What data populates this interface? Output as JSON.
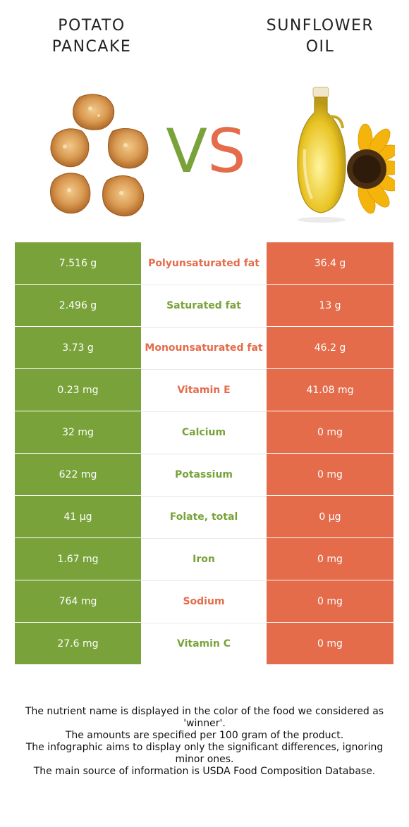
{
  "foods": {
    "left": {
      "name": "POTATO\nPANCAKE",
      "color": "#79a33a"
    },
    "right": {
      "name": "SUNFLOWER\nOIL",
      "color": "#e46c4b"
    }
  },
  "vs": {
    "v": "V",
    "s": "S"
  },
  "rows": [
    {
      "nutrient": "Polyunsaturated fat",
      "left": "7.516 g",
      "right": "36.4 g",
      "winner": "right"
    },
    {
      "nutrient": "Saturated fat",
      "left": "2.496 g",
      "right": "13 g",
      "winner": "left"
    },
    {
      "nutrient": "Monounsaturated fat",
      "left": "3.73 g",
      "right": "46.2 g",
      "winner": "right"
    },
    {
      "nutrient": "Vitamin E",
      "left": "0.23 mg",
      "right": "41.08 mg",
      "winner": "right"
    },
    {
      "nutrient": "Calcium",
      "left": "32 mg",
      "right": "0 mg",
      "winner": "left"
    },
    {
      "nutrient": "Potassium",
      "left": "622 mg",
      "right": "0 mg",
      "winner": "left"
    },
    {
      "nutrient": "Folate, total",
      "left": "41 µg",
      "right": "0 µg",
      "winner": "left"
    },
    {
      "nutrient": "Iron",
      "left": "1.67 mg",
      "right": "0 mg",
      "winner": "left"
    },
    {
      "nutrient": "Sodium",
      "left": "764 mg",
      "right": "0 mg",
      "winner": "right"
    },
    {
      "nutrient": "Vitamin C",
      "left": "27.6 mg",
      "right": "0 mg",
      "winner": "left"
    }
  ],
  "footer": [
    "The nutrient name is displayed in the color of the food we considered as 'winner'.",
    "The amounts are specified per 100 gram of the product.",
    "The infographic aims to display only the significant differences, ignoring minor ones.",
    "The main source of information is USDA Food Composition Database."
  ]
}
